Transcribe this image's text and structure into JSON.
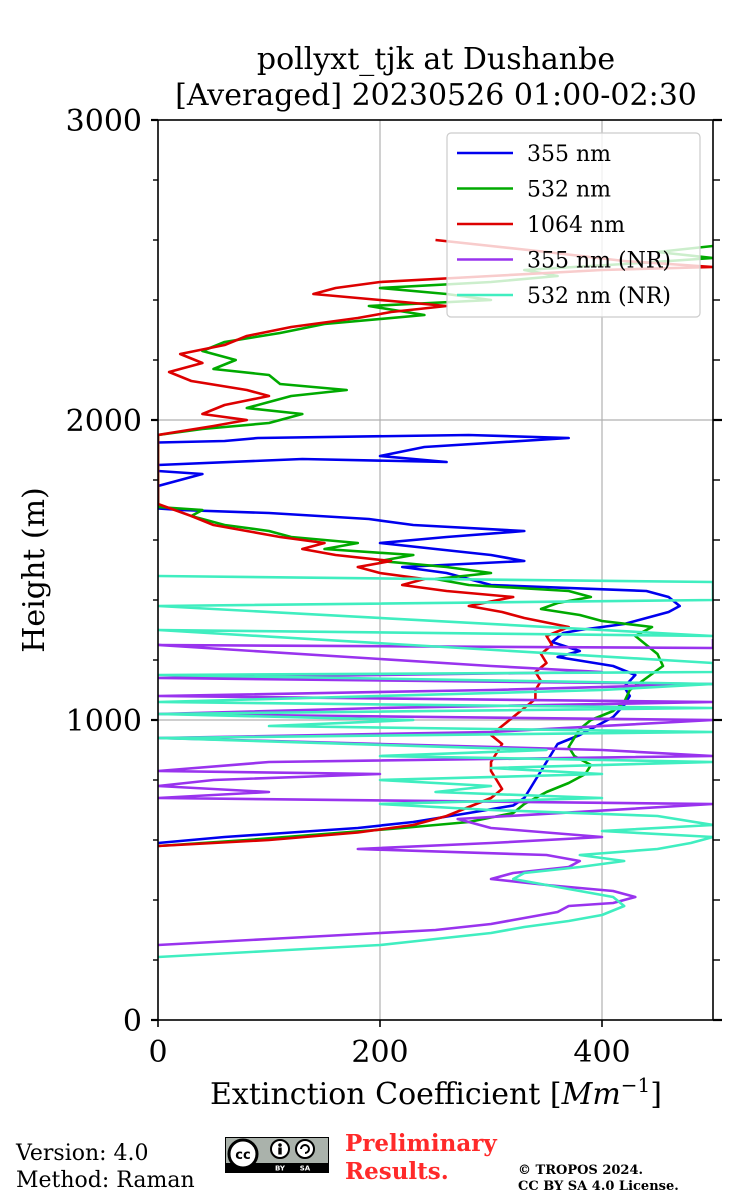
{
  "chart_data": {
    "type": "line",
    "title_lines": [
      "pollyxt_tjk at Dushanbe",
      "[Averaged] 20230526 01:00-02:30"
    ],
    "xlabel_main": "Extinction Coefficient [",
    "xlabel_unit": "Mm",
    "xlabel_exp": "−1",
    "xlabel_close": "]",
    "ylabel": "Height (m)",
    "xlim": [
      0,
      500
    ],
    "ylim": [
      0,
      3000
    ],
    "x_ticks": [
      {
        "value": 0,
        "label": "0"
      },
      {
        "value": 200,
        "label": "200"
      },
      {
        "value": 400,
        "label": "400"
      }
    ],
    "y_ticks": [
      {
        "value": 0,
        "label": "0"
      },
      {
        "value": 1000,
        "label": "1000"
      },
      {
        "value": 2000,
        "label": "2000"
      },
      {
        "value": 3000,
        "label": "3000"
      }
    ],
    "y_minor_step": 200,
    "grid": true,
    "legend_position": "top-right",
    "series": [
      {
        "name": "355 nm",
        "color": "#0000ee",
        "points": [
          [
            0,
            590
          ],
          [
            60,
            610
          ],
          [
            120,
            625
          ],
          [
            180,
            640
          ],
          [
            230,
            660
          ],
          [
            280,
            690
          ],
          [
            320,
            715
          ],
          [
            330,
            740
          ],
          [
            335,
            770
          ],
          [
            340,
            800
          ],
          [
            345,
            830
          ],
          [
            350,
            860
          ],
          [
            355,
            890
          ],
          [
            360,
            920
          ],
          [
            380,
            950
          ],
          [
            395,
            980
          ],
          [
            410,
            1010
          ],
          [
            420,
            1050
          ],
          [
            425,
            1080
          ],
          [
            420,
            1110
          ],
          [
            430,
            1150
          ],
          [
            410,
            1180
          ],
          [
            360,
            1210
          ],
          [
            380,
            1230
          ],
          [
            355,
            1260
          ],
          [
            365,
            1290
          ],
          [
            380,
            1300
          ],
          [
            420,
            1320
          ],
          [
            440,
            1340
          ],
          [
            460,
            1360
          ],
          [
            470,
            1380
          ],
          [
            460,
            1410
          ],
          [
            440,
            1430
          ],
          [
            300,
            1450
          ],
          [
            280,
            1470
          ],
          [
            260,
            1490
          ],
          [
            220,
            1510
          ],
          [
            330,
            1530
          ],
          [
            300,
            1550
          ],
          [
            250,
            1570
          ],
          [
            200,
            1590
          ],
          [
            260,
            1610
          ],
          [
            330,
            1630
          ],
          [
            230,
            1650
          ],
          [
            190,
            1670
          ],
          [
            100,
            1690
          ],
          [
            20,
            1700
          ],
          [
            0,
            1705
          ],
          [
            0,
            1780
          ],
          [
            40,
            1820
          ],
          [
            0,
            1830
          ],
          [
            0,
            1850
          ],
          [
            130,
            1870
          ],
          [
            260,
            1860
          ],
          [
            200,
            1880
          ],
          [
            240,
            1910
          ],
          [
            370,
            1940
          ],
          [
            280,
            1950
          ],
          [
            90,
            1940
          ],
          [
            60,
            1930
          ],
          [
            0,
            1925
          ]
        ]
      },
      {
        "name": "532 nm",
        "color": "#00aa00",
        "points": [
          [
            0,
            580
          ],
          [
            80,
            600
          ],
          [
            150,
            620
          ],
          [
            220,
            640
          ],
          [
            280,
            660
          ],
          [
            320,
            690
          ],
          [
            330,
            720
          ],
          [
            350,
            760
          ],
          [
            370,
            790
          ],
          [
            385,
            820
          ],
          [
            390,
            850
          ],
          [
            375,
            880
          ],
          [
            370,
            910
          ],
          [
            375,
            940
          ],
          [
            380,
            970
          ],
          [
            390,
            1000
          ],
          [
            410,
            1030
          ],
          [
            420,
            1060
          ],
          [
            425,
            1100
          ],
          [
            440,
            1140
          ],
          [
            455,
            1180
          ],
          [
            450,
            1220
          ],
          [
            440,
            1250
          ],
          [
            430,
            1280
          ],
          [
            445,
            1310
          ],
          [
            400,
            1330
          ],
          [
            380,
            1350
          ],
          [
            345,
            1370
          ],
          [
            360,
            1390
          ],
          [
            390,
            1410
          ],
          [
            370,
            1430
          ],
          [
            280,
            1450
          ],
          [
            250,
            1470
          ],
          [
            300,
            1490
          ],
          [
            260,
            1510
          ],
          [
            200,
            1530
          ],
          [
            230,
            1550
          ],
          [
            150,
            1570
          ],
          [
            180,
            1590
          ],
          [
            120,
            1610
          ],
          [
            100,
            1630
          ],
          [
            60,
            1650
          ],
          [
            30,
            1680
          ],
          [
            40,
            1700
          ],
          [
            0,
            1710
          ],
          [
            0,
            1950
          ],
          [
            40,
            1970
          ],
          [
            100,
            1990
          ],
          [
            130,
            2020
          ],
          [
            80,
            2040
          ],
          [
            100,
            2060
          ],
          [
            120,
            2080
          ],
          [
            170,
            2100
          ],
          [
            110,
            2120
          ],
          [
            100,
            2150
          ],
          [
            50,
            2170
          ],
          [
            70,
            2200
          ],
          [
            40,
            2230
          ],
          [
            60,
            2260
          ],
          [
            110,
            2290
          ],
          [
            150,
            2320
          ],
          [
            240,
            2350
          ],
          [
            190,
            2380
          ],
          [
            300,
            2400
          ],
          [
            260,
            2420
          ],
          [
            200,
            2440
          ],
          [
            300,
            2460
          ],
          [
            360,
            2480
          ],
          [
            330,
            2500
          ],
          [
            420,
            2520
          ],
          [
            500,
            2540
          ],
          [
            450,
            2560
          ],
          [
            500,
            2580
          ]
        ]
      },
      {
        "name": "1064 nm",
        "color": "#dd0000",
        "points": [
          [
            0,
            580
          ],
          [
            100,
            600
          ],
          [
            180,
            625
          ],
          [
            230,
            650
          ],
          [
            260,
            680
          ],
          [
            280,
            710
          ],
          [
            300,
            740
          ],
          [
            310,
            770
          ],
          [
            305,
            800
          ],
          [
            300,
            830
          ],
          [
            300,
            860
          ],
          [
            305,
            890
          ],
          [
            310,
            920
          ],
          [
            300,
            950
          ],
          [
            310,
            980
          ],
          [
            320,
            1010
          ],
          [
            330,
            1040
          ],
          [
            340,
            1070
          ],
          [
            340,
            1100
          ],
          [
            345,
            1130
          ],
          [
            340,
            1160
          ],
          [
            350,
            1190
          ],
          [
            345,
            1220
          ],
          [
            355,
            1250
          ],
          [
            350,
            1280
          ],
          [
            370,
            1310
          ],
          [
            330,
            1340
          ],
          [
            310,
            1360
          ],
          [
            280,
            1380
          ],
          [
            320,
            1410
          ],
          [
            260,
            1430
          ],
          [
            220,
            1450
          ],
          [
            240,
            1470
          ],
          [
            200,
            1490
          ],
          [
            180,
            1510
          ],
          [
            210,
            1530
          ],
          [
            160,
            1550
          ],
          [
            130,
            1570
          ],
          [
            150,
            1590
          ],
          [
            110,
            1610
          ],
          [
            80,
            1630
          ],
          [
            50,
            1650
          ],
          [
            30,
            1680
          ],
          [
            0,
            1720
          ],
          [
            0,
            1950
          ],
          [
            50,
            1980
          ],
          [
            80,
            2000
          ],
          [
            40,
            2020
          ],
          [
            60,
            2050
          ],
          [
            100,
            2080
          ],
          [
            80,
            2100
          ],
          [
            30,
            2130
          ],
          [
            10,
            2160
          ],
          [
            40,
            2190
          ],
          [
            20,
            2220
          ],
          [
            60,
            2250
          ],
          [
            80,
            2280
          ],
          [
            120,
            2310
          ],
          [
            180,
            2340
          ],
          [
            210,
            2360
          ],
          [
            260,
            2380
          ],
          [
            200,
            2400
          ],
          [
            140,
            2420
          ],
          [
            160,
            2440
          ],
          [
            200,
            2460
          ],
          [
            300,
            2480
          ],
          [
            400,
            2500
          ],
          [
            500,
            2510
          ],
          [
            420,
            2530
          ],
          [
            350,
            2560
          ],
          [
            250,
            2600
          ]
        ]
      },
      {
        "name": "355 nm (NR)",
        "color": "#9933ee",
        "points": [
          [
            0,
            250
          ],
          [
            100,
            270
          ],
          [
            200,
            290
          ],
          [
            250,
            300
          ],
          [
            300,
            320
          ],
          [
            330,
            340
          ],
          [
            360,
            360
          ],
          [
            370,
            380
          ],
          [
            410,
            390
          ],
          [
            430,
            410
          ],
          [
            410,
            430
          ],
          [
            350,
            450
          ],
          [
            300,
            470
          ],
          [
            320,
            490
          ],
          [
            370,
            510
          ],
          [
            380,
            530
          ],
          [
            350,
            550
          ],
          [
            180,
            570
          ],
          [
            300,
            590
          ],
          [
            400,
            610
          ],
          [
            300,
            640
          ],
          [
            270,
            670
          ],
          [
            500,
            720
          ],
          [
            0,
            740
          ],
          [
            100,
            760
          ],
          [
            0,
            780
          ],
          [
            50,
            800
          ],
          [
            200,
            820
          ],
          [
            0,
            830
          ],
          [
            100,
            860
          ],
          [
            500,
            880
          ],
          [
            400,
            900
          ],
          [
            0,
            940
          ],
          [
            300,
            960
          ],
          [
            500,
            1000
          ],
          [
            0,
            1020
          ],
          [
            200,
            1040
          ],
          [
            500,
            1060
          ],
          [
            0,
            1080
          ],
          [
            300,
            1100
          ],
          [
            500,
            1120
          ],
          [
            0,
            1140
          ],
          [
            400,
            1160
          ],
          [
            300,
            1180
          ],
          [
            0,
            1250
          ],
          [
            500,
            1240
          ],
          [
            500,
            1270
          ]
        ]
      },
      {
        "name": "532 nm (NR)",
        "color": "#40eec0",
        "points": [
          [
            0,
            210
          ],
          [
            100,
            230
          ],
          [
            200,
            250
          ],
          [
            250,
            270
          ],
          [
            300,
            290
          ],
          [
            330,
            310
          ],
          [
            370,
            330
          ],
          [
            400,
            350
          ],
          [
            420,
            380
          ],
          [
            410,
            410
          ],
          [
            380,
            430
          ],
          [
            350,
            450
          ],
          [
            320,
            470
          ],
          [
            330,
            490
          ],
          [
            380,
            510
          ],
          [
            420,
            530
          ],
          [
            380,
            550
          ],
          [
            450,
            570
          ],
          [
            480,
            590
          ],
          [
            500,
            610
          ],
          [
            400,
            630
          ],
          [
            500,
            650
          ],
          [
            450,
            680
          ],
          [
            300,
            700
          ],
          [
            200,
            720
          ],
          [
            400,
            740
          ],
          [
            250,
            760
          ],
          [
            300,
            780
          ],
          [
            200,
            800
          ],
          [
            400,
            820
          ],
          [
            300,
            840
          ],
          [
            500,
            860
          ],
          [
            200,
            880
          ],
          [
            350,
            900
          ],
          [
            0,
            940
          ],
          [
            500,
            960
          ],
          [
            100,
            980
          ],
          [
            230,
            1000
          ],
          [
            0,
            1020
          ],
          [
            500,
            1040
          ],
          [
            0,
            1060
          ],
          [
            400,
            1100
          ],
          [
            500,
            1120
          ],
          [
            0,
            1150
          ],
          [
            500,
            1160
          ],
          [
            500,
            1190
          ],
          [
            0,
            1300
          ],
          [
            500,
            1280
          ],
          [
            0,
            1380
          ],
          [
            500,
            1400
          ],
          [
            500,
            1460
          ],
          [
            0,
            1480
          ]
        ]
      }
    ]
  },
  "footer": {
    "version": "Version: 4.0",
    "method": "Method: Raman",
    "preliminary_line1": "Preliminary",
    "preliminary_line2": "Results.",
    "copyright_line1": "© TROPOS 2024.",
    "copyright_line2": "CC BY SA 4.0 License.",
    "license_badge": {
      "cc": "cc",
      "by": "BY",
      "sa": "SA",
      "icon": "cc-by-sa-icon"
    }
  }
}
